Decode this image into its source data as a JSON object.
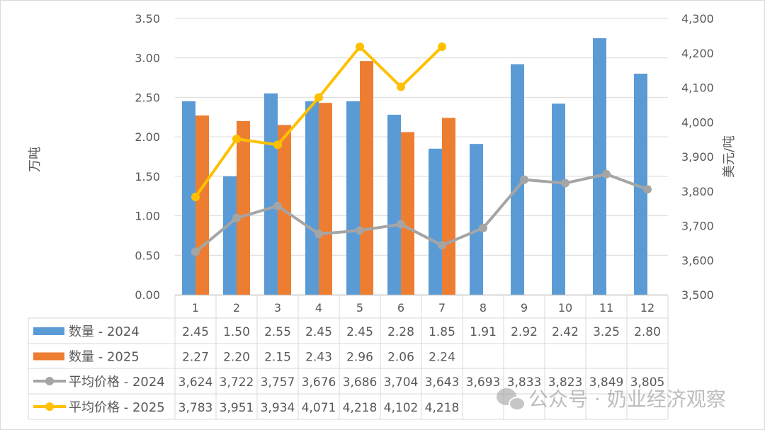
{
  "chart_data": {
    "type": "bar+line",
    "categories": [
      "1",
      "2",
      "3",
      "4",
      "5",
      "6",
      "7",
      "8",
      "9",
      "10",
      "11",
      "12"
    ],
    "ylabel": "万吨",
    "y2label": "美元/吨",
    "ylim": [
      0,
      3.5
    ],
    "y2lim": [
      3500,
      4300
    ],
    "yticks": [
      "0.00",
      "0.50",
      "1.00",
      "1.50",
      "2.00",
      "2.50",
      "3.00",
      "3.50"
    ],
    "y2ticks": [
      "3,500",
      "3,600",
      "3,700",
      "3,800",
      "3,900",
      "4,000",
      "4,100",
      "4,200",
      "4,300"
    ],
    "grid": true,
    "legend": "data-table",
    "series": [
      {
        "name": "数量 - 2024",
        "kind": "bar",
        "axis": "left",
        "color": "#5B9BD5",
        "values": [
          2.45,
          1.5,
          2.55,
          2.45,
          2.45,
          2.28,
          1.85,
          1.91,
          2.92,
          2.42,
          3.25,
          2.8
        ],
        "labels": [
          "2.45",
          "1.50",
          "2.55",
          "2.45",
          "2.45",
          "2.28",
          "1.85",
          "1.91",
          "2.92",
          "2.42",
          "3.25",
          "2.80"
        ]
      },
      {
        "name": "数量 - 2025",
        "kind": "bar",
        "axis": "left",
        "color": "#ED7D31",
        "values": [
          2.27,
          2.2,
          2.15,
          2.43,
          2.96,
          2.06,
          2.24,
          null,
          null,
          null,
          null,
          null
        ],
        "labels": [
          "2.27",
          "2.20",
          "2.15",
          "2.43",
          "2.96",
          "2.06",
          "2.24",
          "",
          "",
          "",
          "",
          ""
        ]
      },
      {
        "name": "平均价格 - 2024",
        "kind": "line",
        "axis": "right",
        "color": "#A5A5A5",
        "values": [
          3624,
          3722,
          3757,
          3676,
          3686,
          3704,
          3643,
          3693,
          3833,
          3823,
          3849,
          3805
        ],
        "labels": [
          "3,624",
          "3,722",
          "3,757",
          "3,676",
          "3,686",
          "3,704",
          "3,643",
          "3,693",
          "3,833",
          "3,823",
          "3,849",
          "3,805"
        ]
      },
      {
        "name": "平均价格 - 2025",
        "kind": "line",
        "axis": "right",
        "color": "#FFC000",
        "values": [
          3783,
          3951,
          3934,
          4071,
          4218,
          4102,
          4218,
          null,
          null,
          null,
          null,
          null
        ],
        "labels": [
          "3,783",
          "3,951",
          "3,934",
          "4,071",
          "4,218",
          "4,102",
          "4,218",
          "",
          "",
          "",
          "",
          ""
        ]
      }
    ]
  },
  "watermark": {
    "text": "公众号 · 奶业经济观察",
    "icon": "wechat-icon"
  }
}
